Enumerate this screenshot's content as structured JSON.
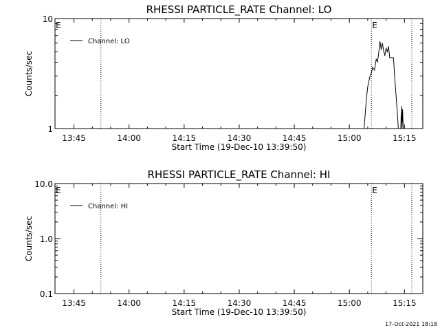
{
  "chart_data": [
    {
      "type": "line",
      "title": "RHESSI PARTICLE_RATE Channel: LO",
      "xlabel": "Start Time (19-Dec-10 13:39:50)",
      "ylabel": "Counts/sec",
      "xlim": [
        "13:39:50",
        "15:20:00"
      ],
      "ylim": [
        1,
        10
      ],
      "yscale": "log",
      "x_ticks": [
        "13:45",
        "14:00",
        "14:15",
        "14:30",
        "14:45",
        "15:00",
        "15:15"
      ],
      "y_ticks": [
        "1",
        "10"
      ],
      "legend": {
        "placement": "top-left",
        "entries": [
          "Channel: LO"
        ]
      },
      "event_markers": [
        {
          "time": "13:52:20",
          "label": ""
        },
        {
          "time": "15:06:00",
          "label": "E"
        },
        {
          "time": "15:17:00",
          "label": ""
        }
      ],
      "start_flag": "E",
      "series": [
        {
          "name": "Channel: LO",
          "x": [
            "15:04:00",
            "15:04:40",
            "15:05:00",
            "15:05:30",
            "15:06:00",
            "15:06:20",
            "15:06:50",
            "15:07:20",
            "15:07:40",
            "15:08:00",
            "15:08:20",
            "15:08:40",
            "15:09:00",
            "15:09:20",
            "15:09:40",
            "15:10:00",
            "15:10:20",
            "15:10:40",
            "15:11:00",
            "15:11:30",
            "15:12:00",
            "15:12:30",
            "15:13:00",
            "15:13:20",
            "15:13:40",
            "15:14:00",
            "15:14:10",
            "15:14:20",
            "15:14:30",
            "15:14:40"
          ],
          "y": [
            1.0,
            1.9,
            2.4,
            2.9,
            3.2,
            3.6,
            3.4,
            4.3,
            4.0,
            4.9,
            6.2,
            5.2,
            6.0,
            5.1,
            4.6,
            5.4,
            5.0,
            5.6,
            4.4,
            4.4,
            4.4,
            2.5,
            1.5,
            1.0,
            1.0,
            1.0,
            1.6,
            1.0,
            1.5,
            1.0
          ]
        }
      ]
    },
    {
      "type": "line",
      "title": "RHESSI PARTICLE_RATE Channel: HI",
      "xlabel": "Start Time (19-Dec-10 13:39:50)",
      "ylabel": "Counts/sec",
      "xlim": [
        "13:39:50",
        "15:20:00"
      ],
      "ylim": [
        0.1,
        10
      ],
      "yscale": "log",
      "x_ticks": [
        "13:45",
        "14:00",
        "14:15",
        "14:30",
        "14:45",
        "15:00",
        "15:15"
      ],
      "y_ticks": [
        "0.1",
        "1.0",
        "10.0"
      ],
      "legend": {
        "placement": "top-left",
        "entries": [
          "Channel: HI"
        ]
      },
      "event_markers": [
        {
          "time": "13:52:20",
          "label": ""
        },
        {
          "time": "15:06:00",
          "label": "E"
        },
        {
          "time": "15:17:00",
          "label": ""
        }
      ],
      "start_flag": "E",
      "series": [
        {
          "name": "Channel: HI",
          "x": [],
          "y": []
        }
      ]
    }
  ],
  "footer_timestamp": "17-Oct-2021 18:18"
}
